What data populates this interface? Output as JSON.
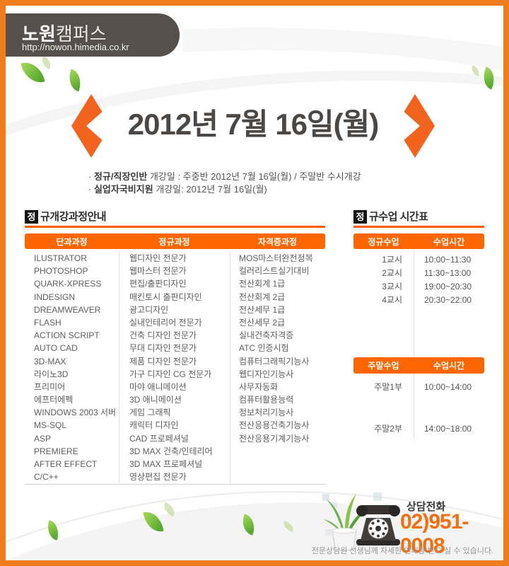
{
  "header": {
    "brand_bold": "노원",
    "brand_rest": "캠퍼스",
    "url": "http://nowon.himedia.co.kr"
  },
  "banner": {
    "date": "2012년  7월 16일(월)"
  },
  "notices": [
    {
      "bullet": "·",
      "bold": "정규/직장인반",
      "rest": " 개강일  :  주중반 2012년 7월 16일(월)  /  주말반 수시개강"
    },
    {
      "bullet": "·",
      "bold": "실업자국비지원",
      "rest": " 개강일:  2012년 7월 16일(월)"
    }
  ],
  "course_section": {
    "badge": "정",
    "title": "규개강과정안내",
    "columns": [
      "단과과정",
      "정규과정",
      "자격증과정"
    ],
    "rows": [
      [
        "ILUSTRATOR",
        "웹디자인 전문가",
        "MOS마스터완전정복"
      ],
      [
        "PHOTOSHOP",
        "웹마스터 전문가",
        "컬러리스트실기대비"
      ],
      [
        "QUARK-XPRESS",
        "편집/출판디자인",
        "전산회계 1급"
      ],
      [
        "INDESIGN",
        "매킨토시 출판디자인",
        "전산회계 2급"
      ],
      [
        "DREAMWEAVER",
        "광고디자인",
        "전산세무 1급"
      ],
      [
        "FLASH",
        "실내인테리어 전문가",
        "전산세무 2급"
      ],
      [
        "ACTION SCRIPT",
        "건축 디자인 전문가",
        "실내건축자격증"
      ],
      [
        "AUTO CAD",
        "무대 디자인 전문가",
        "ATC 인증시험"
      ],
      [
        "3D-MAX",
        "제품 디자인 전문가",
        "컴퓨터그래픽기능사"
      ],
      [
        "라이노3D",
        "가구 디자인 CG 전문가",
        "웹디자인기능사"
      ],
      [
        "프리미어",
        "마야 애니메이션",
        "사무자동화"
      ],
      [
        "에프터에펙",
        "3D 애니메이션",
        "컴퓨터활용능력"
      ],
      [
        "WINDOWS 2003 서버",
        "게임 그래픽",
        "정보처리기능사"
      ],
      [
        "MS-SQL",
        "캐릭터 디자인",
        "전산응용건축기능사"
      ],
      [
        "ASP",
        "CAD 프로페셔널",
        "전산응용기계기능사"
      ],
      [
        "PREMIERE",
        "3D MAX 건축/인테리어",
        ""
      ],
      [
        "AFTER EFFECT",
        "3D MAX 프로페셔널",
        ""
      ],
      [
        "C/C++",
        "영상편집 전문가",
        ""
      ]
    ]
  },
  "time_section": {
    "badge": "정",
    "title": "규수업 시간표",
    "regular": {
      "columns": [
        "정규수업",
        "수업시간"
      ],
      "rows": [
        [
          "1교시",
          "10:00~11:30"
        ],
        [
          "2교시",
          "11:30~13:00"
        ],
        [
          "3교시",
          "19:00~20:30"
        ],
        [
          "4교시",
          "20:30~22:00"
        ]
      ]
    },
    "weekend": {
      "columns": [
        "주말수업",
        "수업시간"
      ],
      "rows": [
        [
          "주말1부",
          "10:00~14:00"
        ],
        [
          "주말2부",
          "14:00~18:00"
        ]
      ]
    }
  },
  "contact": {
    "label": "상담전화",
    "phone": "02)951-0008",
    "note": "전문상담원 선생님께 자세한 안내를 받으 실 수 있습니다."
  },
  "colors": {
    "frame_orange": "#ef7d1e",
    "table_header_orange": "#ff6600",
    "rule_orange": "#ff5f04",
    "arrow_orange": "#f2641e",
    "phone_orange": "#f66d0c",
    "header_dark": "#55504b",
    "badge_black": "#141414",
    "title_gray": "#4b4745"
  }
}
